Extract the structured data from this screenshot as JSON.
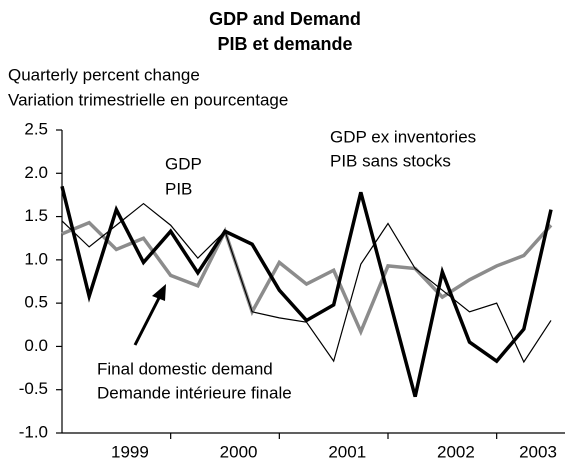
{
  "chart_data": {
    "type": "line",
    "title": "GDP and Demand",
    "subtitle": "PIB et demande",
    "y_label": "Quarterly percent change",
    "y_label_fr": "Variation trimestrielle en pourcentage",
    "categories": [
      null,
      null,
      "1999",
      null,
      null,
      null,
      "2000",
      null,
      null,
      null,
      "2001",
      null,
      null,
      null,
      "2002",
      null,
      null,
      null,
      "2003"
    ],
    "series": [
      {
        "name": "GDP",
        "name_fr": "PIB",
        "color": "#000000",
        "width": 3.5,
        "values": [
          1.85,
          0.58,
          1.58,
          0.97,
          1.33,
          0.85,
          1.33,
          1.18,
          0.65,
          0.3,
          0.48,
          1.78,
          0.6,
          -0.58,
          0.86,
          0.05,
          -0.17,
          0.2,
          1.58
        ]
      },
      {
        "name": "Final domestic demand",
        "name_fr": "Demande intérieure finale",
        "color": "#8c8c8c",
        "width": 3.5,
        "values": [
          1.3,
          1.43,
          1.12,
          1.25,
          0.82,
          0.7,
          1.33,
          0.4,
          0.97,
          0.72,
          0.88,
          0.17,
          0.93,
          0.9,
          0.57,
          0.77,
          0.93,
          1.05,
          1.4
        ]
      },
      {
        "name": "GDP ex inventories",
        "name_fr": "PIB sans stocks",
        "color": "#000000",
        "width": 1.2,
        "values": [
          1.45,
          1.15,
          1.4,
          1.65,
          1.4,
          1.02,
          1.33,
          0.4,
          0.33,
          0.28,
          -0.17,
          0.95,
          1.42,
          0.9,
          0.65,
          0.4,
          0.5,
          -0.18,
          0.3
        ]
      }
    ],
    "ylim": [
      -1.0,
      2.5
    ],
    "yticks": [
      {
        "value": -1.0,
        "label": "-1.0"
      },
      -0.5,
      {
        "value": 0,
        "label": "0.0"
      },
      0.5,
      {
        "value": 1.0,
        "label": "1.0"
      },
      1.5,
      {
        "value": 2.0,
        "label": "2.0"
      },
      2.5
    ],
    "grid": false
  }
}
